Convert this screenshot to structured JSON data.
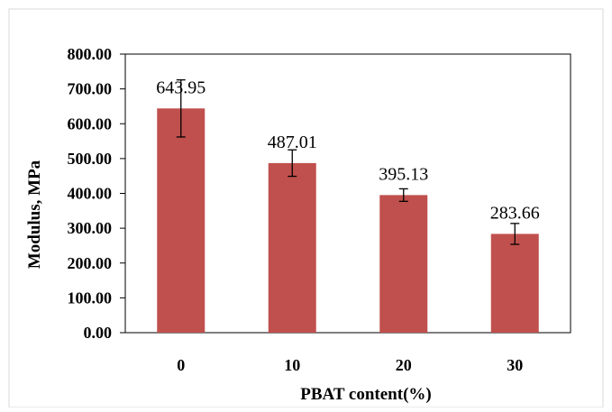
{
  "chart_data": {
    "type": "bar",
    "title": "",
    "xlabel": "PBAT content(%)",
    "ylabel": "Modulus, MPa",
    "categories": [
      "0",
      "10",
      "20",
      "30"
    ],
    "values": [
      643.95,
      487.01,
      395.13,
      283.66
    ],
    "data_labels": [
      "643.95",
      "487.01",
      "395.13",
      "283.66"
    ],
    "error": [
      82,
      38,
      18,
      30
    ],
    "ylim": [
      0,
      800
    ],
    "yticks": [
      0,
      100,
      200,
      300,
      400,
      500,
      600,
      700,
      800
    ],
    "ytick_labels": [
      "0.00",
      "100.00",
      "200.00",
      "300.00",
      "400.00",
      "500.00",
      "600.00",
      "700.00",
      "800.00"
    ],
    "grid": false,
    "legend": "none",
    "bar_color": "#c0504d"
  }
}
